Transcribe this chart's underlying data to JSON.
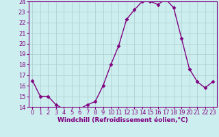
{
  "x": [
    0,
    1,
    2,
    3,
    4,
    5,
    6,
    7,
    8,
    9,
    10,
    11,
    12,
    13,
    14,
    15,
    16,
    17,
    18,
    19,
    20,
    21,
    22,
    23
  ],
  "y": [
    16.5,
    15.0,
    15.0,
    14.2,
    13.8,
    13.8,
    13.8,
    14.2,
    14.5,
    16.0,
    18.0,
    19.8,
    22.3,
    23.2,
    24.0,
    24.0,
    23.7,
    24.2,
    23.4,
    20.5,
    17.6,
    16.4,
    15.8,
    16.4
  ],
  "line_color": "#800080",
  "marker": "D",
  "markersize": 2.5,
  "linewidth": 1.0,
  "bg_color": "#cceeee",
  "grid_color": "#aacccc",
  "xlabel": "Windchill (Refroidissement éolien,°C)",
  "xlabel_fontsize": 6.5,
  "tick_fontsize": 6,
  "ylim": [
    14,
    24
  ],
  "xlim": [
    -0.5,
    23.5
  ],
  "yticks": [
    14,
    15,
    16,
    17,
    18,
    19,
    20,
    21,
    22,
    23,
    24
  ],
  "xticks": [
    0,
    1,
    2,
    3,
    4,
    5,
    6,
    7,
    8,
    9,
    10,
    11,
    12,
    13,
    14,
    15,
    16,
    17,
    18,
    19,
    20,
    21,
    22,
    23
  ],
  "spine_color": "#800080",
  "tick_color": "#800080"
}
